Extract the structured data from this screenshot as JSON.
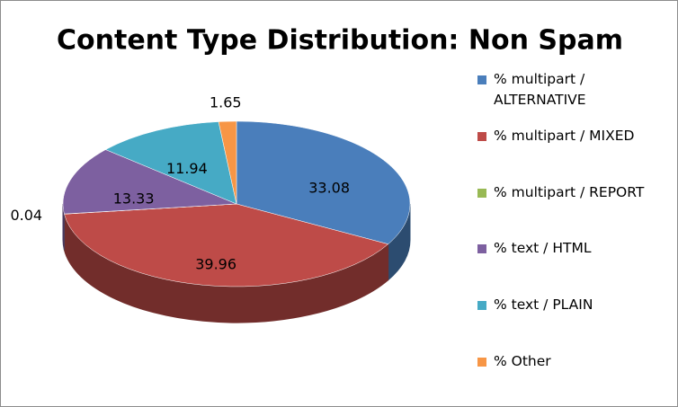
{
  "chart_data": {
    "type": "pie3d",
    "title": "Content Type Distribution: Non Spam",
    "categories": [
      "% multipart / ALTERNATIVE",
      "% multipart / MIXED",
      "% multipart / REPORT",
      "% text / HTML",
      "% text / PLAIN",
      "% Other"
    ],
    "values": [
      33.08,
      39.96,
      0.04,
      13.33,
      11.94,
      1.65
    ],
    "colors": [
      "#4a7ebb",
      "#be4b48",
      "#98b954",
      "#7d60a0",
      "#46aac5",
      "#f79646"
    ],
    "legend": "right"
  }
}
